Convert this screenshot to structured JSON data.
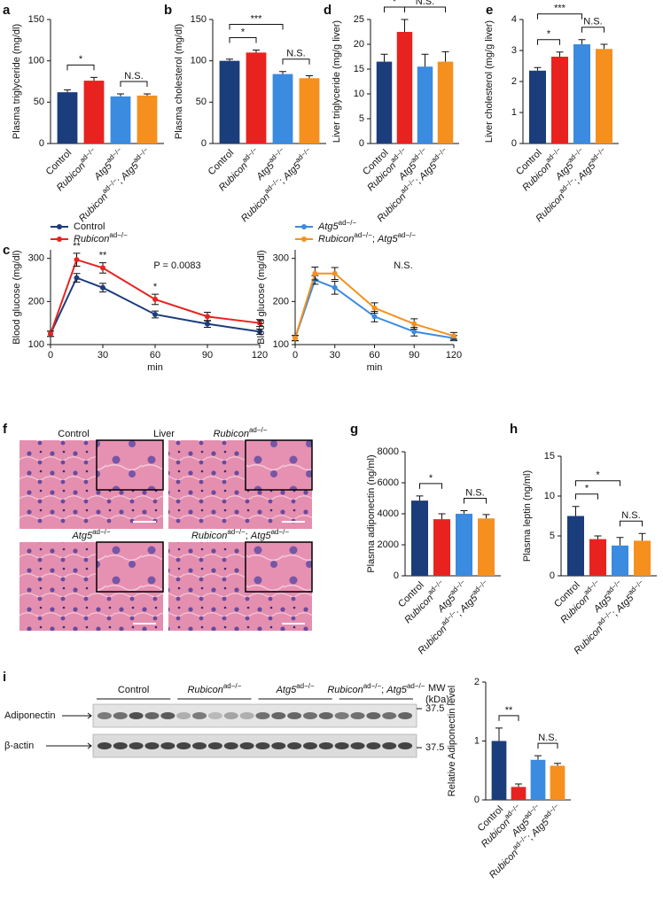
{
  "chart_data": [
    {
      "type": "bar",
      "label": "a",
      "ylabel": "Plasma triglyceride (mg/dl)",
      "categories": [
        "Control",
        "Rubiconad−/−",
        "Atg5ad−/−",
        "Rubiconad−/−; Atg5ad−/−"
      ],
      "values": [
        62,
        76,
        57,
        58
      ],
      "errors": [
        3,
        4,
        3,
        2
      ],
      "colors": [
        "#1b3d7c",
        "#e8231f",
        "#3b8be0",
        "#f5901e"
      ],
      "ylim": [
        0,
        150
      ],
      "yticks": [
        0,
        50,
        100,
        150
      ],
      "significance": [
        {
          "pair": [
            0,
            1
          ],
          "label": "*"
        },
        {
          "pair": [
            2,
            3
          ],
          "label": "N.S."
        }
      ]
    },
    {
      "type": "bar",
      "label": "b",
      "ylabel": "Plasma cholesterol (mg/dl)",
      "categories": [
        "Control",
        "Rubiconad−/−",
        "Atg5ad−/−",
        "Rubiconad−/−; Atg5ad−/−"
      ],
      "values": [
        100,
        110,
        84,
        79
      ],
      "errors": [
        2,
        3,
        3,
        3
      ],
      "colors": [
        "#1b3d7c",
        "#e8231f",
        "#3b8be0",
        "#f5901e"
      ],
      "ylim": [
        0,
        150
      ],
      "yticks": [
        0,
        50,
        100,
        150
      ],
      "significance": [
        {
          "pair": [
            0,
            1
          ],
          "label": "*"
        },
        {
          "pair": [
            0,
            2
          ],
          "label": "***"
        },
        {
          "pair": [
            2,
            3
          ],
          "label": "N.S."
        }
      ]
    },
    {
      "type": "bar",
      "label": "d",
      "ylabel": "Liver triglyceride (mg/g liver)",
      "categories": [
        "Control",
        "Rubiconad−/−",
        "Atg5ad−/−",
        "Rubiconad−/−; Atg5ad−/−"
      ],
      "values": [
        16.5,
        22.5,
        15.5,
        16.5
      ],
      "errors": [
        1.5,
        2.5,
        2.5,
        2
      ],
      "colors": [
        "#1b3d7c",
        "#e8231f",
        "#3b8be0",
        "#f5901e"
      ],
      "ylim": [
        0,
        25
      ],
      "yticks": [
        0,
        5,
        10,
        15,
        20,
        25
      ],
      "significance": [
        {
          "pair": [
            0,
            1
          ],
          "label": "*"
        },
        {
          "pair": [
            1,
            3
          ],
          "label": "N.S."
        }
      ]
    },
    {
      "type": "bar",
      "label": "e",
      "ylabel": "Liver cholesterol (mg/g liver)",
      "categories": [
        "Control",
        "Rubiconad−/−",
        "Atg5ad−/−",
        "Rubiconad−/−; Atg5ad−/−"
      ],
      "values": [
        2.35,
        2.8,
        3.2,
        3.05
      ],
      "errors": [
        0.1,
        0.15,
        0.15,
        0.15
      ],
      "colors": [
        "#1b3d7c",
        "#e8231f",
        "#3b8be0",
        "#f5901e"
      ],
      "ylim": [
        0,
        4
      ],
      "yticks": [
        0,
        1,
        2,
        3,
        4
      ],
      "significance": [
        {
          "pair": [
            0,
            1
          ],
          "label": "*"
        },
        {
          "pair": [
            0,
            2
          ],
          "label": "***"
        },
        {
          "pair": [
            2,
            3
          ],
          "label": "N.S."
        }
      ]
    },
    {
      "type": "line",
      "label": "c",
      "ylabel": "Blood glucose (mg/dl)",
      "xlabel": "min",
      "stat": "P = 0.0083",
      "x": [
        0,
        15,
        30,
        60,
        90,
        120
      ],
      "xlim": [
        0,
        120
      ],
      "xticks": [
        0,
        30,
        60,
        90,
        120
      ],
      "ylim": [
        100,
        320
      ],
      "yticks": [
        100,
        200,
        300
      ],
      "series": [
        {
          "name": "Control",
          "color": "#1b3d7c",
          "values": [
            125,
            255,
            232,
            170,
            148,
            130
          ],
          "errors": [
            6,
            10,
            10,
            8,
            8,
            6
          ]
        },
        {
          "name": "Rubiconad−/−",
          "color": "#e8231f",
          "values": [
            125,
            297,
            278,
            205,
            165,
            150
          ],
          "errors": [
            6,
            15,
            12,
            12,
            10,
            8
          ]
        }
      ],
      "annotations": [
        {
          "series": 1,
          "index": 1,
          "text": "**"
        },
        {
          "series": 1,
          "index": 2,
          "text": "**"
        },
        {
          "series": 1,
          "index": 3,
          "text": "*"
        }
      ]
    },
    {
      "type": "line",
      "ylabel": "Blood glucose (mg/dl)",
      "xlabel": "min",
      "stat": "N.S.",
      "x": [
        0,
        15,
        30,
        60,
        90,
        120
      ],
      "xlim": [
        0,
        120
      ],
      "xticks": [
        0,
        30,
        60,
        90,
        120
      ],
      "ylim": [
        100,
        320
      ],
      "yticks": [
        100,
        200,
        300
      ],
      "series": [
        {
          "name": "Atg5ad−/−",
          "color": "#3b8be0",
          "values": [
            115,
            250,
            232,
            165,
            130,
            115
          ],
          "errors": [
            6,
            10,
            15,
            12,
            10,
            6
          ]
        },
        {
          "name": "Rubiconad−/−; Atg5ad−/−",
          "color": "#f5901e",
          "values": [
            115,
            265,
            265,
            185,
            148,
            120
          ],
          "errors": [
            6,
            15,
            14,
            12,
            12,
            8
          ]
        }
      ],
      "annotations": []
    },
    {
      "type": "image",
      "label": "f",
      "title": "Liver",
      "panels": [
        "Control",
        "Rubiconad−/−",
        "Atg5ad−/−",
        "Rubiconad−/−; Atg5ad−/−"
      ]
    },
    {
      "type": "bar",
      "label": "g",
      "ylabel": "Plasma adiponectin (ng/ml)",
      "categories": [
        "Control",
        "Rubiconad−/−",
        "Atg5ad−/−",
        "Rubiconad−/−; Atg5ad−/−"
      ],
      "values": [
        4850,
        3650,
        4000,
        3700
      ],
      "errors": [
        300,
        350,
        200,
        250
      ],
      "colors": [
        "#1b3d7c",
        "#e8231f",
        "#3b8be0",
        "#f5901e"
      ],
      "ylim": [
        0,
        8000
      ],
      "yticks": [
        0,
        2000,
        4000,
        6000,
        8000
      ],
      "significance": [
        {
          "pair": [
            0,
            1
          ],
          "label": "*"
        },
        {
          "pair": [
            2,
            3
          ],
          "label": "N.S."
        }
      ]
    },
    {
      "type": "bar",
      "label": "h",
      "ylabel": "Plasma leptin (ng/ml)",
      "categories": [
        "Control",
        "Rubiconad−/−",
        "Atg5ad−/−",
        "Rubiconad−/−; Atg5ad−/−"
      ],
      "values": [
        7.5,
        4.6,
        3.8,
        4.4
      ],
      "errors": [
        1.2,
        0.4,
        1,
        0.9
      ],
      "colors": [
        "#1b3d7c",
        "#e8231f",
        "#3b8be0",
        "#f5901e"
      ],
      "ylim": [
        0,
        15
      ],
      "yticks": [
        0,
        5,
        10,
        15
      ],
      "significance": [
        {
          "pair": [
            0,
            1
          ],
          "label": "*"
        },
        {
          "pair": [
            0,
            2
          ],
          "label": "*"
        },
        {
          "pair": [
            2,
            3
          ],
          "label": "N.S."
        }
      ]
    },
    {
      "type": "blot",
      "label": "i",
      "groups": [
        "Control",
        "Rubiconad−/−",
        "Atg5ad−/−",
        "Rubiconad−/−; Atg5ad−/−"
      ],
      "mw_label": "MW",
      "mw_unit": "(kDa)",
      "rows": [
        {
          "name": "Adiponectin",
          "mw": 37.5
        },
        {
          "name": "β-actin",
          "mw": 37.5
        }
      ]
    },
    {
      "type": "bar",
      "ylabel": "Relative Adiponectin level",
      "categories": [
        "Control",
        "Rubiconad−/−",
        "Atg5ad−/−",
        "Rubiconad−/−; Atg5ad−/−"
      ],
      "values": [
        1.0,
        0.22,
        0.68,
        0.58
      ],
      "errors": [
        0.22,
        0.05,
        0.07,
        0.04
      ],
      "colors": [
        "#1b3d7c",
        "#e8231f",
        "#3b8be0",
        "#f5901e"
      ],
      "ylim": [
        0,
        2
      ],
      "yticks": [
        0,
        1,
        2
      ],
      "significance": [
        {
          "pair": [
            0,
            1
          ],
          "label": "**"
        },
        {
          "pair": [
            2,
            3
          ],
          "label": "N.S."
        }
      ]
    }
  ]
}
